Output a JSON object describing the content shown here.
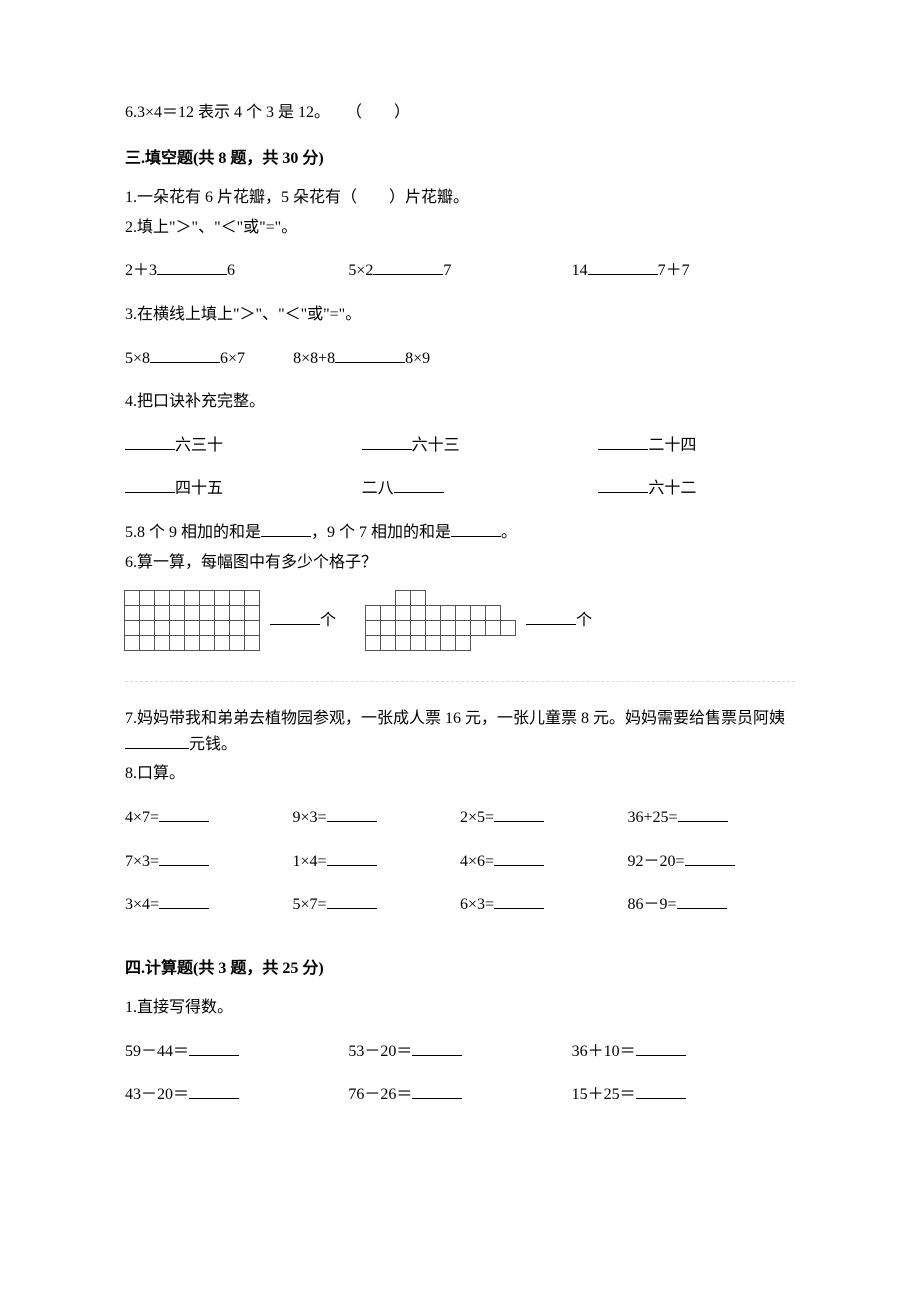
{
  "tf": {
    "q6": "6.3×4＝12 表示 4 个 3 是 12。　　（　　）"
  },
  "section3": {
    "heading": "三.填空题(共 8 题，共 30 分)",
    "q1": "1.一朵花有 6 片花瓣，5 朵花有（　　）片花瓣。",
    "q2_intro": "2.填上\"＞\"、\"＜\"或\"=\"。",
    "q2_a_l": "2＋3",
    "q2_a_r": "6",
    "q2_b_l": "5×2",
    "q2_b_r": "7",
    "q2_c_l": "14",
    "q2_c_r": "7＋7",
    "q3_intro": "3.在横线上填上\"＞\"、\"＜\"或\"=\"。",
    "q3_a_l": "5×8",
    "q3_a_r": "6×7",
    "q3_b_l": "8×8+8",
    "q3_b_r": "8×9",
    "q4_intro": "4.把口诀补充完整。",
    "q4_r1c1": "六三十",
    "q4_r1c2": "六十三",
    "q4_r1c3": "二十四",
    "q4_r2c1": "四十五",
    "q4_r2c2_pre": "二八",
    "q4_r2c3": "六十二",
    "q5_part1": "5.8 个 9 相加的和是",
    "q5_part2": "，9 个 7 相加的和是",
    "q5_part3": "。",
    "q6_intro": "6.算一算，每幅图中有多少个格子？",
    "q6_unit": "个",
    "grid_a": {
      "rows": 4,
      "cols": 9
    },
    "grid_b": {
      "layout": [
        [
          0,
          0,
          1,
          1,
          0,
          0,
          0,
          0,
          0,
          0
        ],
        [
          1,
          1,
          1,
          1,
          1,
          1,
          1,
          1,
          1,
          0
        ],
        [
          1,
          1,
          1,
          1,
          1,
          1,
          1,
          1,
          1,
          1
        ],
        [
          1,
          1,
          1,
          1,
          1,
          1,
          1,
          0,
          0,
          0
        ]
      ]
    },
    "q7_part1": "7.妈妈带我和弟弟去植物园参观，一张成人票 16 元，一张儿童票 8 元。妈妈需要给售票员阿姨",
    "q7_part2": "元钱。",
    "q8_intro": "8.口算。",
    "q8_rows": [
      [
        "4×7=",
        "9×3=",
        "2×5=",
        "36+25="
      ],
      [
        "7×3=",
        "1×4=",
        "4×6=",
        "92－20="
      ],
      [
        "3×4=",
        "5×7=",
        "6×3=",
        "86－9="
      ]
    ]
  },
  "section4": {
    "heading": "四.计算题(共 3 题，共 25 分)",
    "q1_intro": "1.直接写得数。",
    "rows": [
      [
        "59－44＝",
        "53－20＝",
        "36＋10＝"
      ],
      [
        "43－20＝",
        "76－26＝",
        "15＋25＝"
      ]
    ]
  }
}
